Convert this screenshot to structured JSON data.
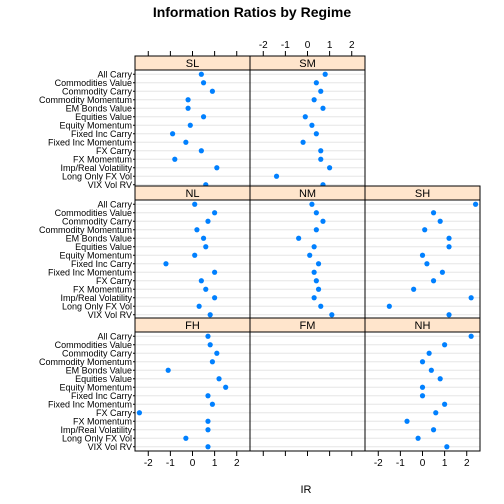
{
  "chart_data": {
    "type": "scatter",
    "title": "Information Ratios by Regime",
    "xlabel": "IR",
    "xlim": [
      -2.6,
      2.6
    ],
    "xticks": [
      -2,
      -1,
      0,
      1,
      2
    ],
    "xtick_labels": [
      "-2",
      "-1",
      "0",
      "1",
      "2"
    ],
    "grid": true,
    "categories": [
      "VIX Vol RV",
      "Long Only FX Vol",
      "Imp/Real Volatility",
      "FX Momentum",
      "FX Carry",
      "Fixed Inc Momentum",
      "Fixed Inc Carry",
      "Equity Momentum",
      "Equities Value",
      "EM Bonds Value",
      "Commodity Momentum",
      "Commodity Carry",
      "Commodities Value",
      "All Carry"
    ],
    "colors": {
      "point": "#0080ff",
      "strip": "#ffe5cc",
      "grid": "#e6e6e6"
    },
    "rows": [
      {
        "panels": [
          {
            "label": "SL",
            "present": true,
            "values": [
              0.6,
              null,
              1.1,
              -0.8,
              0.4,
              -0.3,
              -0.9,
              -0.1,
              0.5,
              -0.2,
              -0.2,
              0.9,
              0.5,
              0.4
            ]
          },
          {
            "label": "SM",
            "present": true,
            "values": [
              0.7,
              -1.4,
              1.0,
              0.6,
              0.6,
              -0.2,
              0.4,
              0.2,
              -0.1,
              0.7,
              0.3,
              0.6,
              0.4,
              0.8
            ]
          },
          {
            "label": "",
            "present": false,
            "values": []
          }
        ]
      },
      {
        "panels": [
          {
            "label": "NL",
            "present": true,
            "values": [
              0.8,
              0.3,
              1.0,
              0.6,
              0.4,
              1.0,
              -1.2,
              0.1,
              0.6,
              0.5,
              0.2,
              0.7,
              1.0,
              0.1
            ]
          },
          {
            "label": "NM",
            "present": true,
            "values": [
              1.1,
              0.6,
              0.3,
              0.5,
              0.4,
              0.3,
              0.5,
              0.1,
              0.3,
              -0.4,
              0.4,
              0.7,
              0.4,
              0.2
            ]
          },
          {
            "label": "SH",
            "present": true,
            "values": [
              1.2,
              -1.5,
              2.2,
              -0.4,
              0.5,
              0.9,
              0.2,
              0.0,
              1.2,
              1.2,
              0.1,
              0.8,
              0.5,
              2.4
            ]
          }
        ]
      },
      {
        "panels": [
          {
            "label": "FH",
            "present": true,
            "values": [
              0.7,
              -0.3,
              0.7,
              0.7,
              -2.4,
              0.9,
              0.7,
              1.5,
              1.2,
              -1.1,
              0.9,
              1.1,
              0.8,
              0.7
            ]
          },
          {
            "label": "FM",
            "present": true,
            "values": []
          },
          {
            "label": "NH",
            "present": true,
            "values": [
              1.1,
              -0.2,
              0.5,
              -0.7,
              0.6,
              1.0,
              0.0,
              0.0,
              0.8,
              0.4,
              0.0,
              0.3,
              1.0,
              2.2
            ]
          }
        ]
      }
    ]
  }
}
